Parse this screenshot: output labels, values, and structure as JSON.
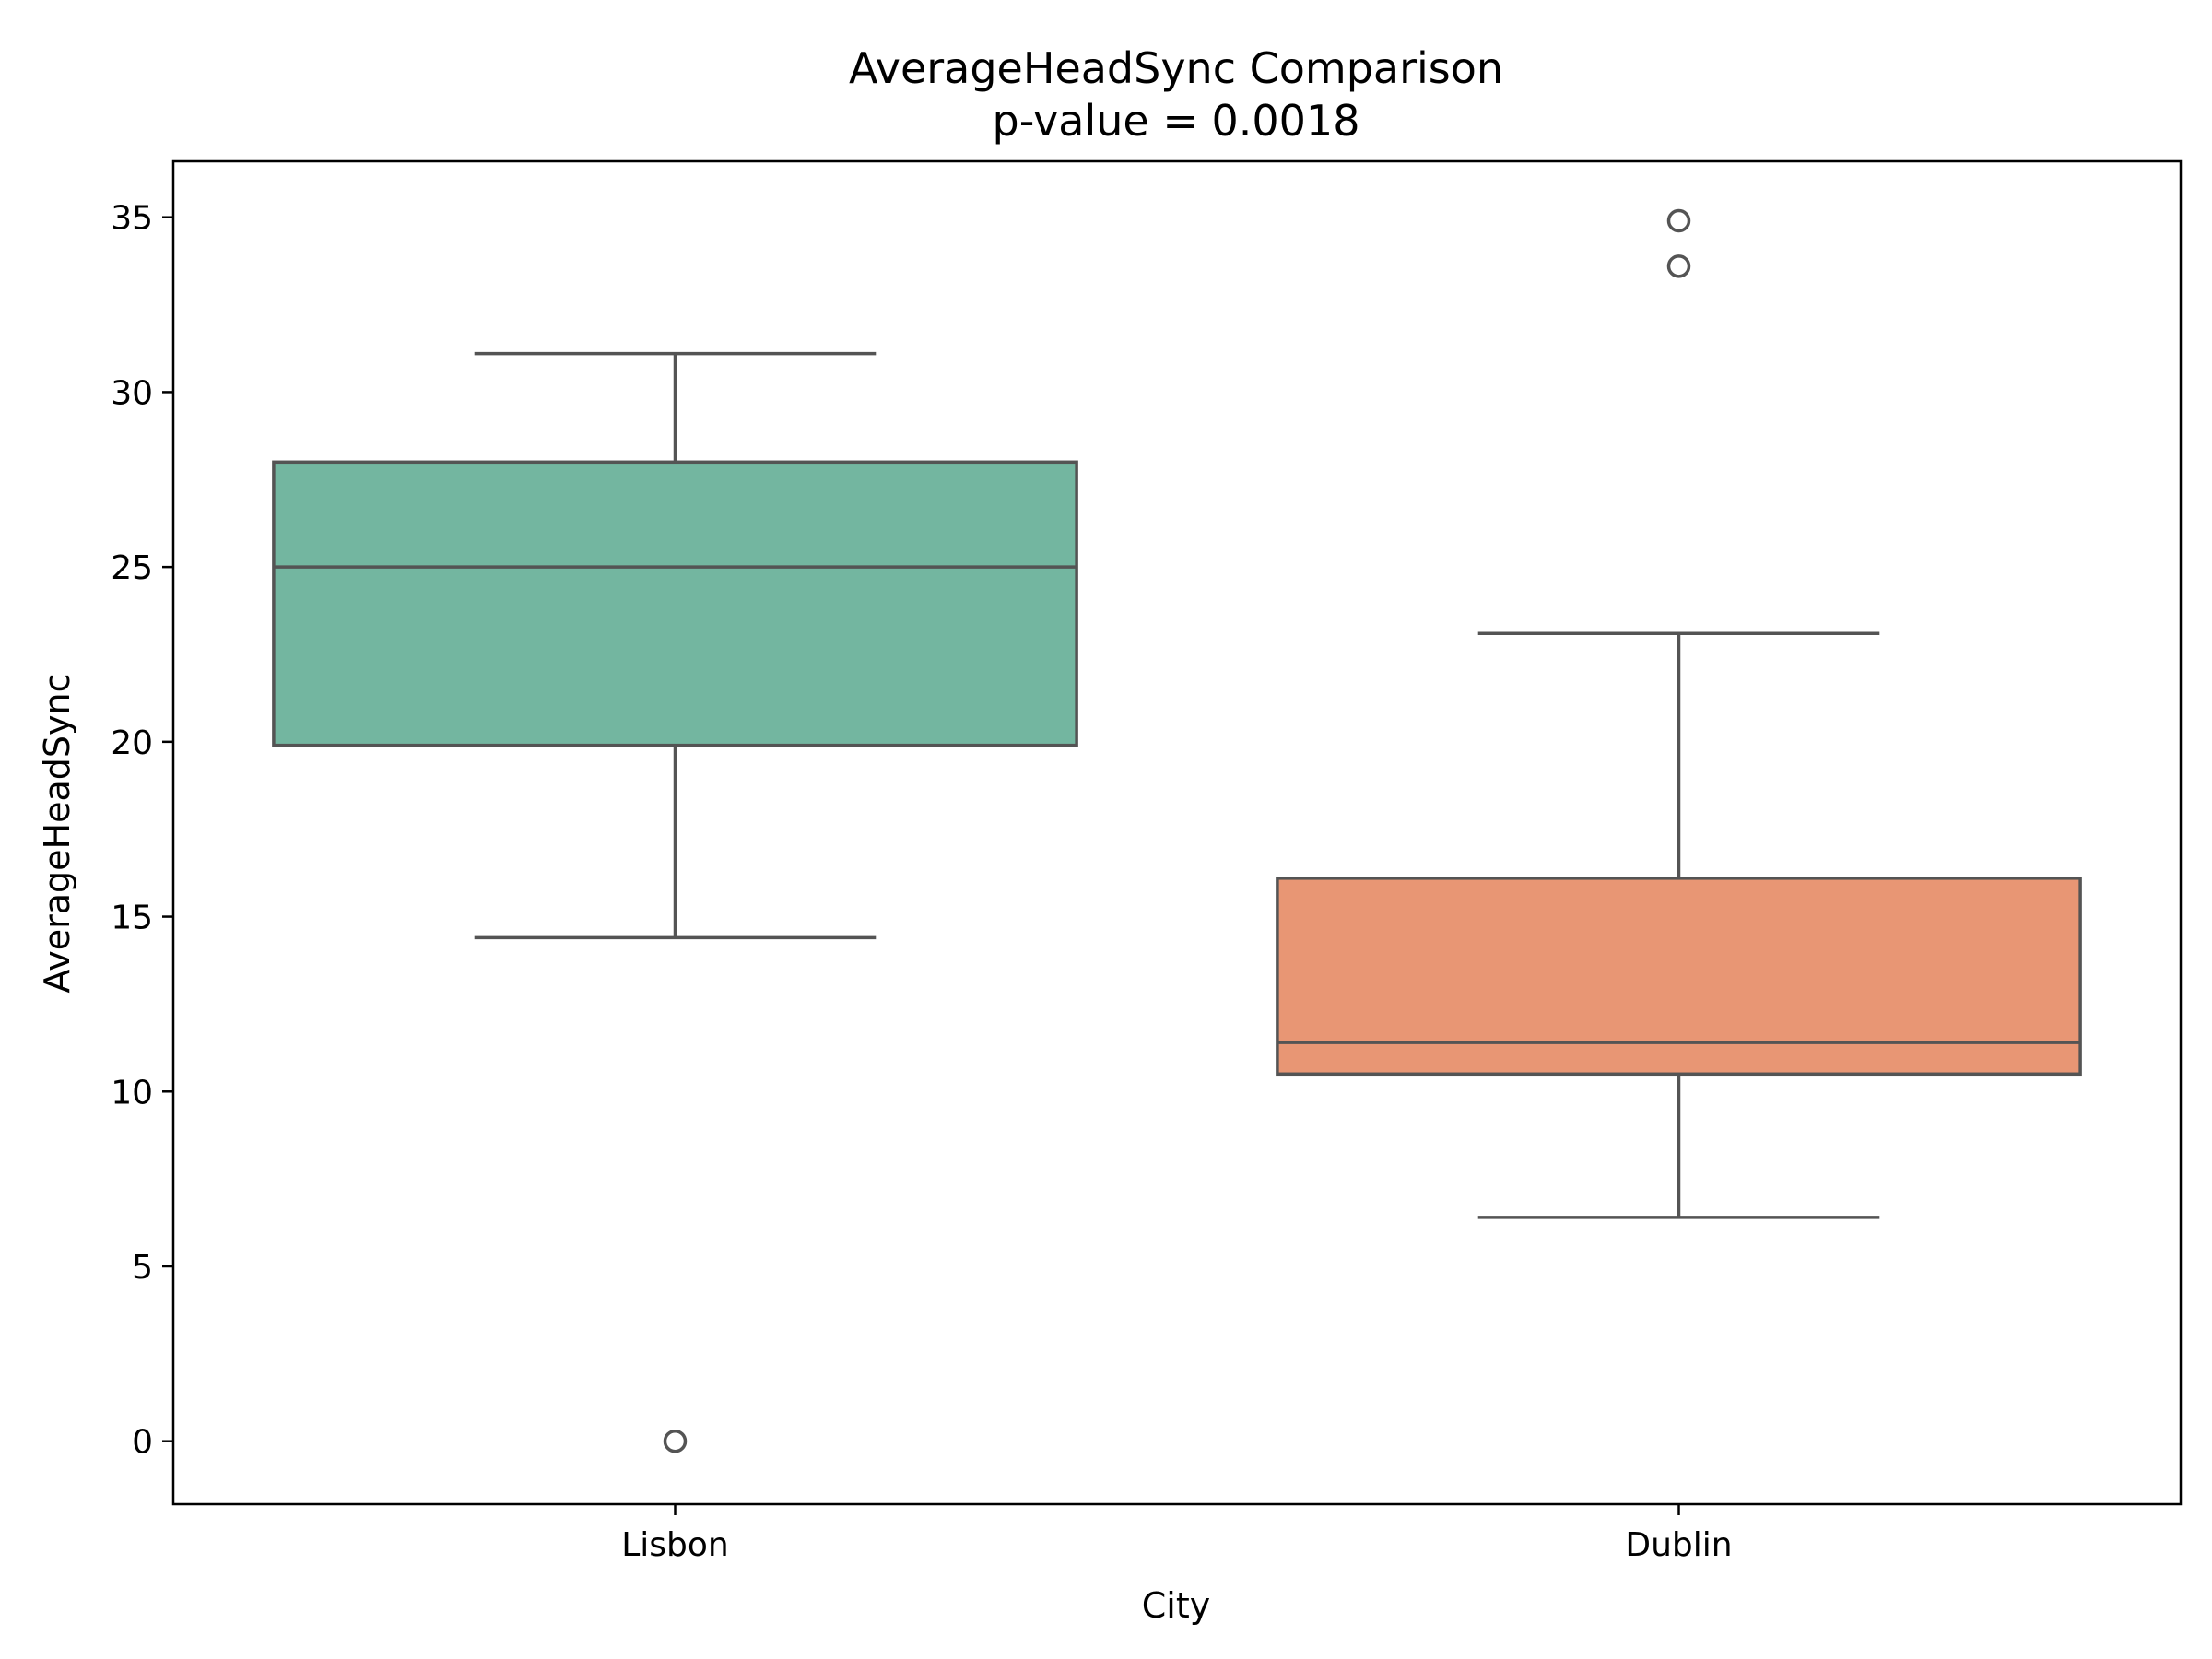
{
  "chart_data": {
    "type": "box",
    "title": "AverageHeadSync Comparison",
    "subtitle": "p-value = 0.0018",
    "xlabel": "City",
    "ylabel": "AverageHeadSync",
    "categories": [
      "Lisbon",
      "Dublin"
    ],
    "ylim": [
      -1.8,
      36.6
    ],
    "yticks": [
      0,
      5,
      10,
      15,
      20,
      25,
      30,
      35
    ],
    "grid": false,
    "boxes": [
      {
        "category": "Lisbon",
        "whisker_low": 14.4,
        "q1": 19.9,
        "median": 25.0,
        "q3": 28.0,
        "whisker_high": 31.1,
        "outliers": [
          0.0
        ],
        "color": "#73b6a0"
      },
      {
        "category": "Dublin",
        "whisker_low": 6.4,
        "q1": 10.5,
        "median": 11.4,
        "q3": 16.1,
        "whisker_high": 23.1,
        "outliers": [
          33.6,
          34.9
        ],
        "color": "#e89674"
      }
    ],
    "line_color": "#545454"
  }
}
